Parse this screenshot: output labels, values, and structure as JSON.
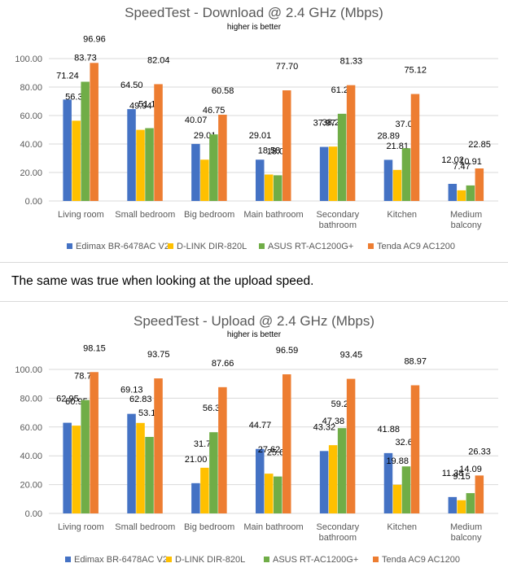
{
  "prose": "The same was true when looking at the upload speed.",
  "colors": {
    "Edimax": "#4472c4",
    "DLink": "#ffc000",
    "ASUS": "#70ad47",
    "Tenda": "#ed7d31",
    "grid": "#d9d9d9",
    "axis_text": "#595959"
  },
  "chart_data": [
    {
      "type": "bar",
      "title": "SpeedTest - Download @ 2.4 GHz (Mbps)",
      "subtitle": "higher is better",
      "xlabel": "",
      "ylabel": "",
      "ylim": [
        0,
        100
      ],
      "yticks": [
        "0.00",
        "20.00",
        "40.00",
        "60.00",
        "80.00",
        "100.00"
      ],
      "grid": true,
      "legend": "bottom",
      "categories": [
        [
          "Living room"
        ],
        [
          "Small bedroom"
        ],
        [
          "Big bedroom"
        ],
        [
          "Main bathroom"
        ],
        [
          "Secondary",
          "bathroom"
        ],
        [
          "Kitchen"
        ],
        [
          "Medium",
          "balcony"
        ]
      ],
      "series": [
        {
          "name": "Edimax BR-6478AC V2",
          "color": "#4472c4",
          "values": [
            71.24,
            64.5,
            40.07,
            29.01,
            37.97,
            28.89,
            12.02
          ],
          "labels": [
            "71.24",
            "64.50",
            "40.07",
            "29.01",
            "37.97",
            "28.89",
            "12.02"
          ]
        },
        {
          "name": "D-LINK DIR-820L",
          "color": "#ffc000",
          "values": [
            56.38,
            49.94,
            29.01,
            18.58,
            38.2,
            21.81,
            7.47
          ],
          "labels": [
            "56.38",
            "49.94",
            "29.01",
            "18.58",
            "38.20",
            "21.81",
            "7.47"
          ]
        },
        {
          "name": "ASUS RT-AC1200G+",
          "color": "#70ad47",
          "values": [
            83.73,
            51.14,
            46.75,
            18.04,
            61.24,
            37.05,
            10.91
          ],
          "labels": [
            "83.73",
            "51.14",
            "46.75",
            "18.04",
            "61.24",
            "37.05",
            "10.91"
          ]
        },
        {
          "name": "Tenda AC9 AC1200",
          "color": "#ed7d31",
          "values": [
            96.96,
            82.04,
            60.58,
            77.7,
            81.33,
            75.12,
            22.85
          ],
          "labels": [
            "96.96",
            "82.04",
            "60.58",
            "77.70",
            "81.33",
            "75.12",
            "22.85"
          ]
        }
      ]
    },
    {
      "type": "bar",
      "title": "SpeedTest - Upload @ 2.4 GHz (Mbps)",
      "subtitle": "higher is better",
      "xlabel": "",
      "ylabel": "",
      "ylim": [
        0,
        100
      ],
      "yticks": [
        "0.00",
        "20.00",
        "40.00",
        "60.00",
        "80.00",
        "100.00"
      ],
      "grid": true,
      "legend": "bottom",
      "categories": [
        [
          "Living room"
        ],
        [
          "Small bedroom"
        ],
        [
          "Big bedroom"
        ],
        [
          "Main bathroom"
        ],
        [
          "Secondary",
          "bathroom"
        ],
        [
          "Kitchen"
        ],
        [
          "Medium",
          "balcony"
        ]
      ],
      "series": [
        {
          "name": "Edimax BR-6478AC V2",
          "color": "#4472c4",
          "values": [
            62.95,
            69.13,
            21.0,
            44.77,
            43.32,
            41.88,
            11.38
          ],
          "labels": [
            "62.95",
            "69.13",
            "21.00",
            "44.77",
            "43.32",
            "41.88",
            "11.38"
          ]
        },
        {
          "name": "D-LINK DIR-820L",
          "color": "#ffc000",
          "values": [
            60.95,
            62.83,
            31.71,
            27.62,
            47.38,
            19.88,
            9.15
          ],
          "labels": [
            "60.95",
            "62.83",
            "31.71",
            "27.62",
            "47.38",
            "19.88",
            "9.15"
          ]
        },
        {
          "name": "ASUS RT-AC1200G+",
          "color": "#70ad47",
          "values": [
            78.72,
            53.12,
            56.39,
            25.64,
            59.21,
            32.64,
            14.09
          ],
          "labels": [
            "78.72",
            "53.12",
            "56.39",
            "25.64",
            "59.21",
            "32.64",
            "14.09"
          ]
        },
        {
          "name": "Tenda AC9 AC1200",
          "color": "#ed7d31",
          "values": [
            98.15,
            93.75,
            87.66,
            96.59,
            93.45,
            88.97,
            26.33
          ],
          "labels": [
            "98.15",
            "93.75",
            "87.66",
            "96.59",
            "93.45",
            "88.97",
            "26.33"
          ]
        }
      ]
    }
  ]
}
